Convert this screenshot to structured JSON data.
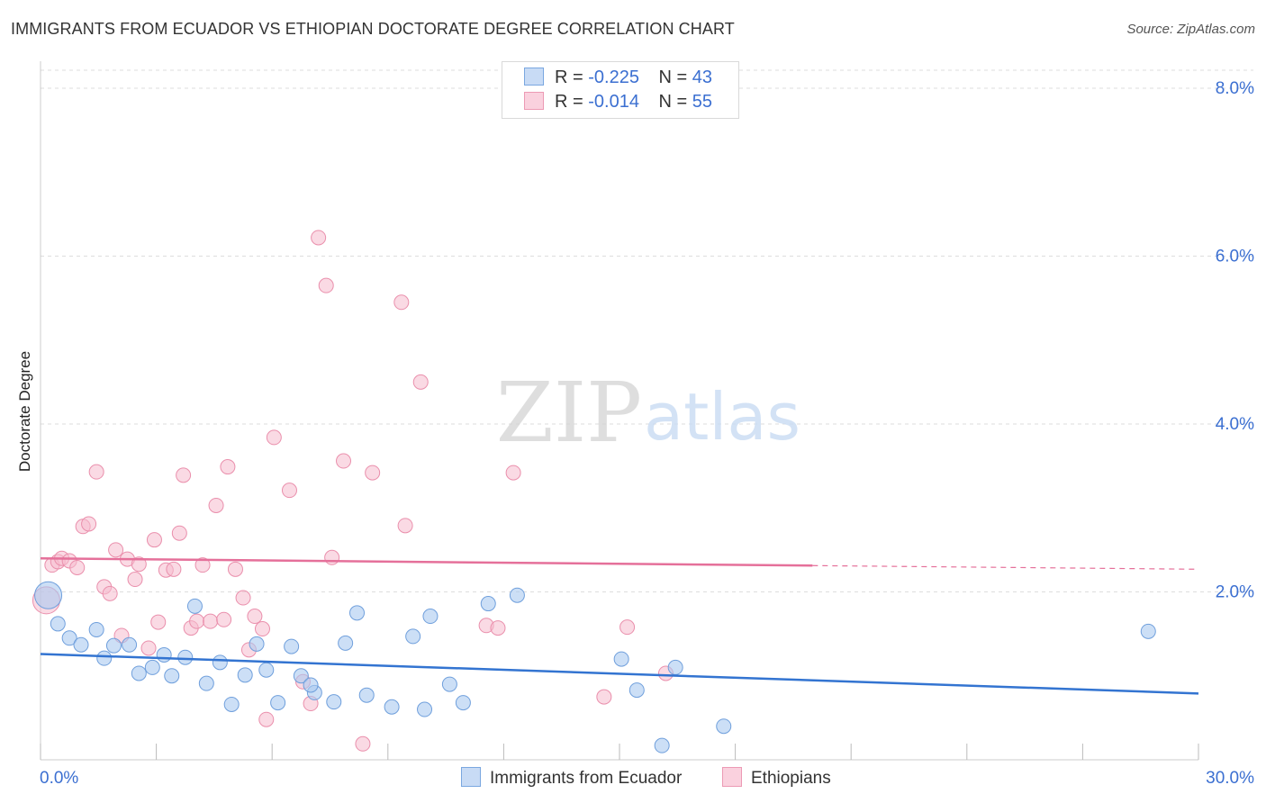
{
  "header": {
    "title": "IMMIGRANTS FROM ECUADOR VS ETHIOPIAN DOCTORATE DEGREE CORRELATION CHART",
    "source": "Source: ZipAtlas.com"
  },
  "legend": {
    "rows": [
      {
        "r_label": "R =",
        "r_value": "-0.225",
        "n_label": "N =",
        "n_value": "43"
      },
      {
        "r_label": "R =",
        "r_value": "-0.014",
        "n_label": "N =",
        "n_value": "55"
      }
    ]
  },
  "bottom_legend": {
    "items": [
      "Immigrants from Ecuador",
      "Ethiopians"
    ]
  },
  "watermark": {
    "zip": "ZIP",
    "atlas": "atlas"
  },
  "colors": {
    "blue_fill": "#aac9f0",
    "blue_stroke": "#6f9fdc",
    "blue_line": "#3374d1",
    "pink_fill": "#f6bccd",
    "pink_stroke": "#ea8fac",
    "pink_line": "#e5709a",
    "tick_label": "#3b6fd1",
    "grid": "#dddddd"
  },
  "chart_data": {
    "type": "scatter",
    "title": "IMMIGRANTS FROM ECUADOR VS ETHIOPIAN DOCTORATE DEGREE CORRELATION CHART",
    "xlabel": "",
    "ylabel": "Doctorate Degree",
    "xlim": [
      0,
      30
    ],
    "ylim": [
      0,
      8
    ],
    "x_tick_labels": [
      "0.0%",
      "30.0%"
    ],
    "y_ticks": [
      2,
      4,
      6,
      8
    ],
    "y_tick_labels": [
      "2.0%",
      "4.0%",
      "6.0%",
      "8.0%"
    ],
    "grid": true,
    "legend_position": "top-center",
    "series": [
      {
        "name": "Immigrants from Ecuador",
        "color": "#aac9f0",
        "trend": {
          "x": [
            0,
            30
          ],
          "y": [
            1.26,
            0.79
          ],
          "solid_to": 30
        },
        "points": [
          {
            "x": 0.2,
            "y": 1.96,
            "big": true
          },
          {
            "x": 0.45,
            "y": 1.62
          },
          {
            "x": 0.75,
            "y": 1.45
          },
          {
            "x": 1.05,
            "y": 1.37
          },
          {
            "x": 1.45,
            "y": 1.55
          },
          {
            "x": 1.65,
            "y": 1.21
          },
          {
            "x": 1.9,
            "y": 1.36
          },
          {
            "x": 2.3,
            "y": 1.37
          },
          {
            "x": 2.55,
            "y": 1.03
          },
          {
            "x": 2.9,
            "y": 1.1
          },
          {
            "x": 3.2,
            "y": 1.25
          },
          {
            "x": 3.4,
            "y": 1.0
          },
          {
            "x": 3.75,
            "y": 1.22
          },
          {
            "x": 4.0,
            "y": 1.83
          },
          {
            "x": 4.3,
            "y": 0.91
          },
          {
            "x": 4.65,
            "y": 1.16
          },
          {
            "x": 4.95,
            "y": 0.66
          },
          {
            "x": 5.3,
            "y": 1.01
          },
          {
            "x": 5.6,
            "y": 1.38
          },
          {
            "x": 5.85,
            "y": 1.07
          },
          {
            "x": 6.15,
            "y": 0.68
          },
          {
            "x": 6.5,
            "y": 1.35
          },
          {
            "x": 6.75,
            "y": 1.0
          },
          {
            "x": 7.1,
            "y": 0.8
          },
          {
            "x": 7.6,
            "y": 0.69
          },
          {
            "x": 7.9,
            "y": 1.39
          },
          {
            "x": 8.2,
            "y": 1.75
          },
          {
            "x": 8.45,
            "y": 0.77
          },
          {
            "x": 9.1,
            "y": 0.63
          },
          {
            "x": 9.65,
            "y": 1.47
          },
          {
            "x": 9.95,
            "y": 0.6
          },
          {
            "x": 10.1,
            "y": 1.71
          },
          {
            "x": 10.6,
            "y": 0.9
          },
          {
            "x": 10.95,
            "y": 0.68
          },
          {
            "x": 11.6,
            "y": 1.86
          },
          {
            "x": 12.35,
            "y": 1.96
          },
          {
            "x": 15.05,
            "y": 1.2
          },
          {
            "x": 15.45,
            "y": 0.83
          },
          {
            "x": 16.1,
            "y": 0.17
          },
          {
            "x": 16.45,
            "y": 1.1
          },
          {
            "x": 17.7,
            "y": 0.4
          },
          {
            "x": 28.7,
            "y": 1.53
          },
          {
            "x": 7.0,
            "y": 0.89
          }
        ]
      },
      {
        "name": "Ethiopians",
        "color": "#f6bccd",
        "trend": {
          "x": [
            0,
            30
          ],
          "y": [
            2.4,
            2.27
          ],
          "solid_to": 20
        },
        "points": [
          {
            "x": 0.15,
            "y": 1.9,
            "big": true
          },
          {
            "x": 0.3,
            "y": 2.32
          },
          {
            "x": 0.45,
            "y": 2.36
          },
          {
            "x": 0.55,
            "y": 2.4
          },
          {
            "x": 0.75,
            "y": 2.37
          },
          {
            "x": 0.95,
            "y": 2.29
          },
          {
            "x": 1.1,
            "y": 2.78
          },
          {
            "x": 1.25,
            "y": 2.81
          },
          {
            "x": 1.45,
            "y": 3.43
          },
          {
            "x": 1.65,
            "y": 2.06
          },
          {
            "x": 1.8,
            "y": 1.98
          },
          {
            "x": 1.95,
            "y": 2.5
          },
          {
            "x": 2.1,
            "y": 1.48
          },
          {
            "x": 2.25,
            "y": 2.39
          },
          {
            "x": 2.45,
            "y": 2.15
          },
          {
            "x": 2.55,
            "y": 2.33
          },
          {
            "x": 2.8,
            "y": 1.33
          },
          {
            "x": 2.95,
            "y": 2.62
          },
          {
            "x": 3.05,
            "y": 1.64
          },
          {
            "x": 3.25,
            "y": 2.26
          },
          {
            "x": 3.45,
            "y": 2.27
          },
          {
            "x": 3.6,
            "y": 2.7
          },
          {
            "x": 3.7,
            "y": 3.39
          },
          {
            "x": 3.9,
            "y": 1.57
          },
          {
            "x": 4.05,
            "y": 1.65
          },
          {
            "x": 4.2,
            "y": 2.32
          },
          {
            "x": 4.4,
            "y": 1.65
          },
          {
            "x": 4.55,
            "y": 3.03
          },
          {
            "x": 4.75,
            "y": 1.67
          },
          {
            "x": 4.85,
            "y": 3.49
          },
          {
            "x": 5.05,
            "y": 2.27
          },
          {
            "x": 5.25,
            "y": 1.93
          },
          {
            "x": 5.4,
            "y": 1.31
          },
          {
            "x": 5.55,
            "y": 1.71
          },
          {
            "x": 5.75,
            "y": 1.56
          },
          {
            "x": 5.85,
            "y": 0.48
          },
          {
            "x": 6.05,
            "y": 3.84
          },
          {
            "x": 6.45,
            "y": 3.21
          },
          {
            "x": 6.8,
            "y": 0.93
          },
          {
            "x": 7.0,
            "y": 0.67
          },
          {
            "x": 7.2,
            "y": 6.22
          },
          {
            "x": 7.4,
            "y": 5.65
          },
          {
            "x": 7.55,
            "y": 2.41
          },
          {
            "x": 7.85,
            "y": 3.56
          },
          {
            "x": 8.35,
            "y": 0.19
          },
          {
            "x": 8.6,
            "y": 3.42
          },
          {
            "x": 9.35,
            "y": 5.45
          },
          {
            "x": 9.45,
            "y": 2.79
          },
          {
            "x": 9.85,
            "y": 4.5
          },
          {
            "x": 11.55,
            "y": 1.6
          },
          {
            "x": 11.85,
            "y": 1.57
          },
          {
            "x": 12.25,
            "y": 3.42
          },
          {
            "x": 14.6,
            "y": 0.75
          },
          {
            "x": 15.2,
            "y": 1.58
          },
          {
            "x": 16.2,
            "y": 1.03
          }
        ]
      }
    ]
  }
}
